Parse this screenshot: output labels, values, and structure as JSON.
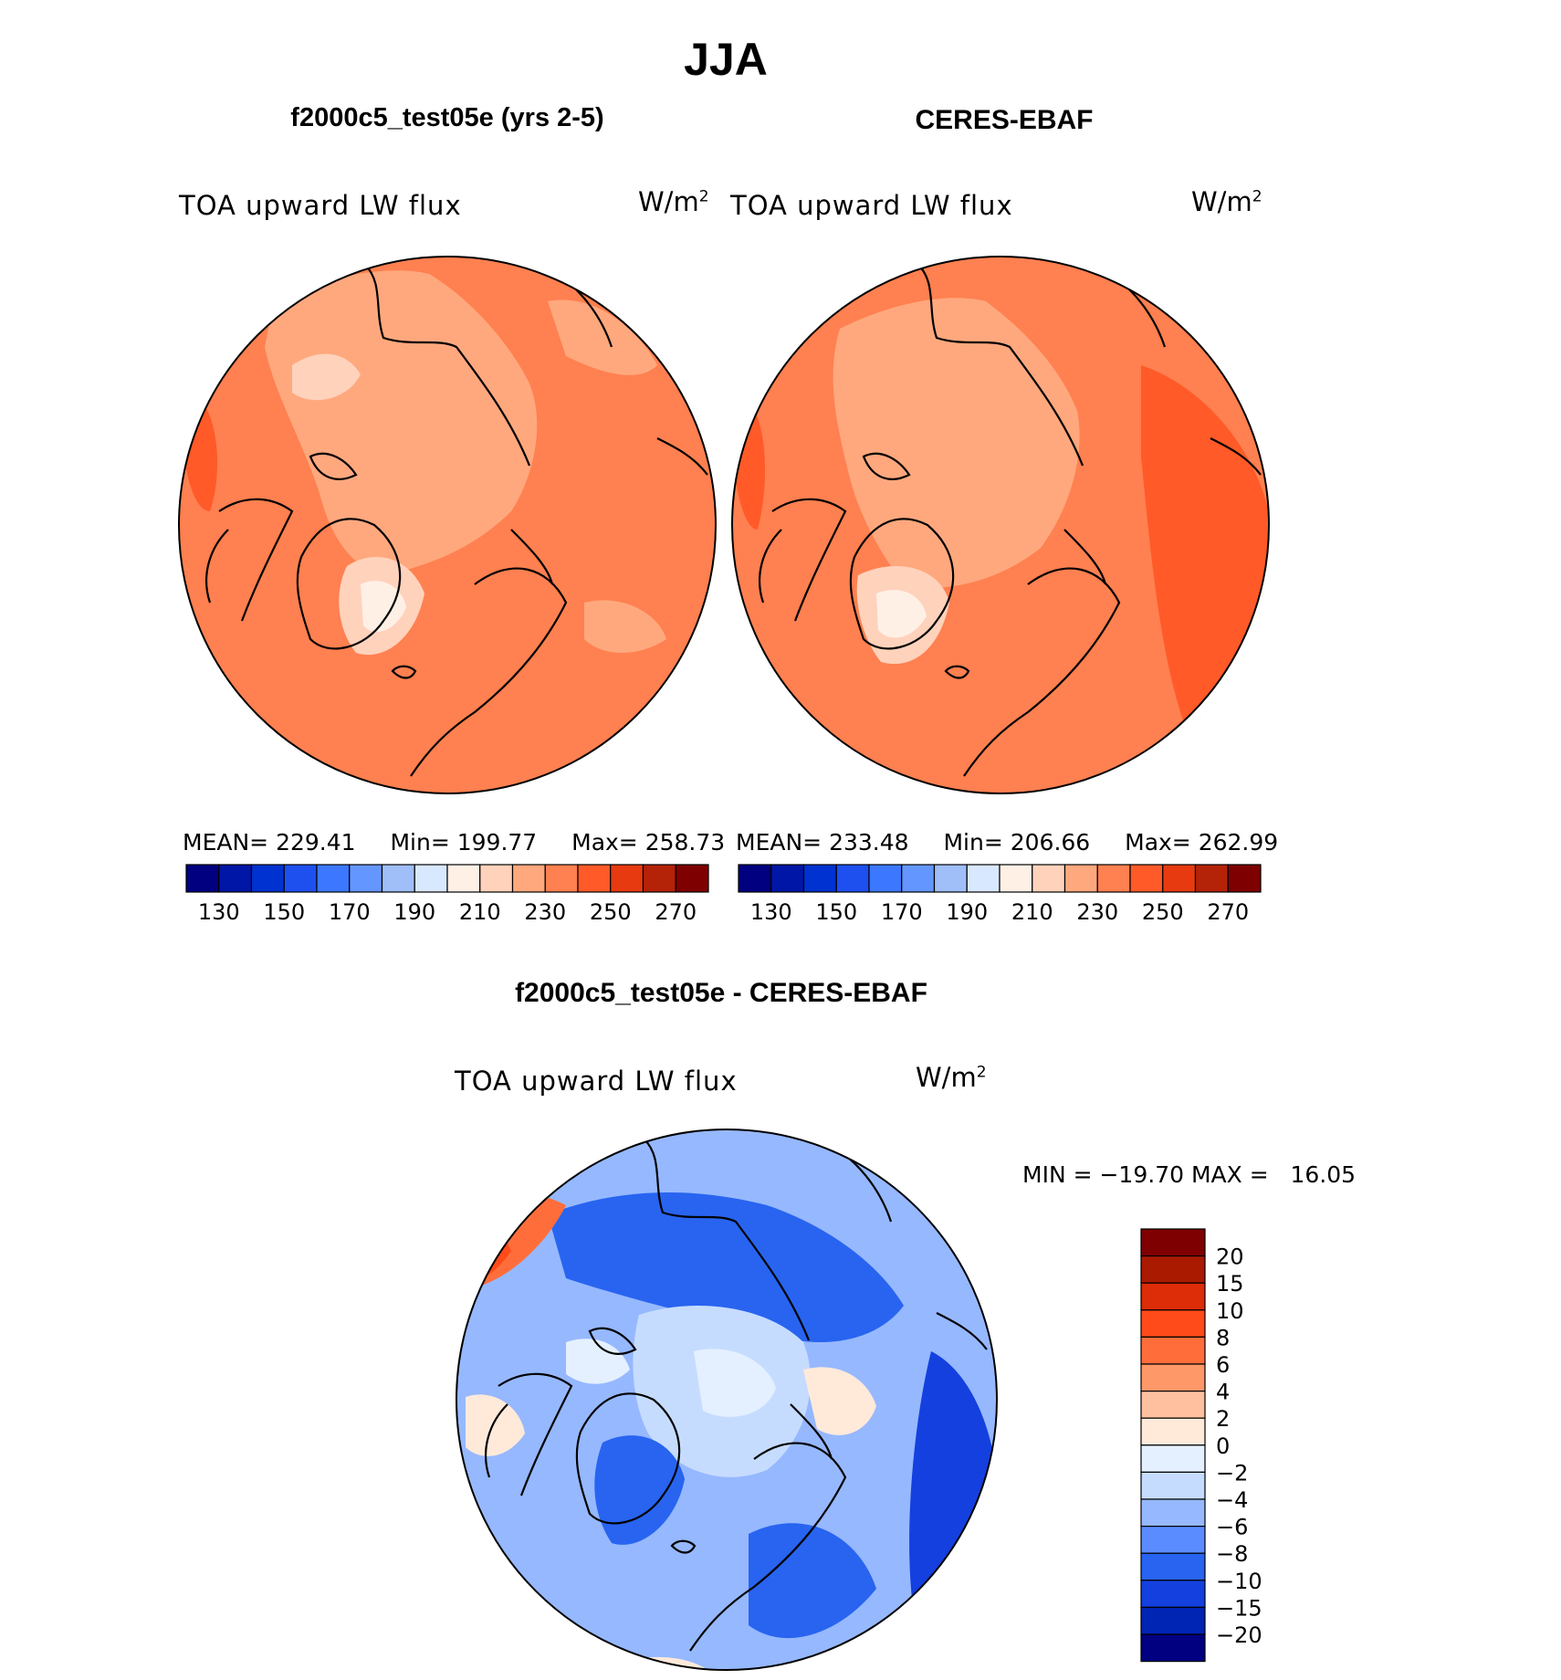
{
  "figure_title": "JJA",
  "panels": {
    "model": {
      "title": "f2000c5_test05e (yrs 2-5)",
      "variable": "TOA upward LW flux",
      "units_base": "W/m",
      "units_sup": "2",
      "stats": {
        "mean_label": "MEAN=",
        "mean": "229.41",
        "min_label": "Min=",
        "min": "199.77",
        "max_label": "Max=",
        "max": "258.73"
      }
    },
    "obs": {
      "title": "CERES-EBAF",
      "variable": "TOA upward LW flux",
      "units_base": "W/m",
      "units_sup": "2",
      "stats": {
        "mean_label": "MEAN=",
        "mean": "233.48",
        "min_label": "Min=",
        "min": "206.66",
        "max_label": "Max=",
        "max": "262.99"
      }
    },
    "diff": {
      "title": "f2000c5_test05e - CERES-EBAF",
      "variable": "TOA upward LW flux",
      "units_base": "W/m",
      "units_sup": "2",
      "minmax": "MIN = −19.70 MAX =   16.05"
    }
  },
  "colors": {
    "abs_scale": [
      "#000080",
      "#0016a6",
      "#0032d2",
      "#1e50f0",
      "#3c78ff",
      "#6496ff",
      "#a0bef8",
      "#d8e8ff",
      "#fff0e6",
      "#ffd2bc",
      "#ffa87e",
      "#ff8050",
      "#ff5a28",
      "#e83a10",
      "#b42208",
      "#7f0000"
    ],
    "diff_scale": [
      "#000080",
      "#0024b4",
      "#1440e0",
      "#2864f0",
      "#5a8cff",
      "#96b8ff",
      "#c6dcff",
      "#e4f0ff",
      "#ffeada",
      "#ffc0a0",
      "#ff9868",
      "#ff6e3a",
      "#ff4a1a",
      "#dc2c08",
      "#aa1a00",
      "#7f0000"
    ],
    "land_outline": "#000000"
  },
  "chart_data": [
    {
      "type": "heatmap",
      "title": "f2000c5_test05e (yrs 2-5)",
      "subtitle": "TOA upward LW flux",
      "units": "W/m2",
      "projection": "polar stereographic, north pole",
      "mean": 229.41,
      "min": 199.77,
      "max": 258.73,
      "colorbar_levels": [
        130,
        140,
        150,
        160,
        170,
        180,
        190,
        200,
        210,
        220,
        230,
        240,
        250,
        260,
        270
      ],
      "colorbar_tick_labels": [
        "130",
        "150",
        "170",
        "190",
        "210",
        "230",
        "250",
        "270"
      ]
    },
    {
      "type": "heatmap",
      "title": "CERES-EBAF",
      "subtitle": "TOA upward LW flux",
      "units": "W/m2",
      "projection": "polar stereographic, north pole",
      "mean": 233.48,
      "min": 206.66,
      "max": 262.99,
      "colorbar_levels": [
        130,
        140,
        150,
        160,
        170,
        180,
        190,
        200,
        210,
        220,
        230,
        240,
        250,
        260,
        270
      ],
      "colorbar_tick_labels": [
        "130",
        "150",
        "170",
        "190",
        "210",
        "230",
        "250",
        "270"
      ]
    },
    {
      "type": "heatmap",
      "title": "f2000c5_test05e - CERES-EBAF",
      "subtitle": "TOA upward LW flux",
      "units": "W/m2",
      "projection": "polar stereographic, north pole",
      "min": -19.7,
      "max": 16.05,
      "colorbar_levels": [
        -20,
        -15,
        -10,
        -8,
        -6,
        -4,
        -2,
        0,
        2,
        4,
        6,
        8,
        10,
        15,
        20
      ],
      "colorbar_tick_labels": [
        "20",
        "15",
        "10",
        "8",
        "6",
        "4",
        "2",
        "0",
        "−2",
        "−4",
        "−6",
        "−8",
        "−10",
        "−15",
        "−20"
      ]
    }
  ]
}
